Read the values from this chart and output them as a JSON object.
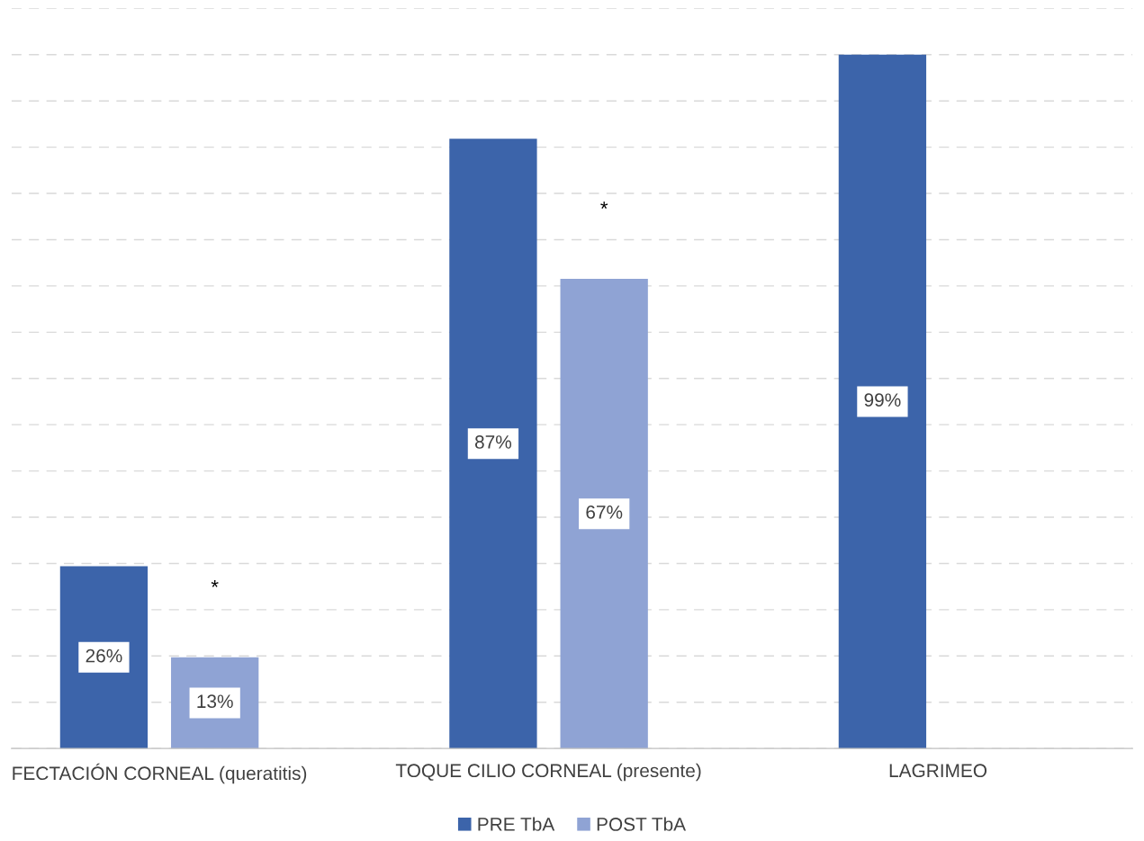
{
  "chart_data": {
    "type": "bar",
    "categories": [
      "FECTACIÓN CORNEAL (queratitis)",
      "TOQUE CILIO CORNEAL (presente)",
      "LAGRIMEO"
    ],
    "series": [
      {
        "name": "PRE TbA",
        "color": "#3c64aa",
        "values": [
          26,
          87,
          99
        ],
        "value_labels": [
          "26%",
          "87%",
          "99%"
        ]
      },
      {
        "name": "POST TbA",
        "color": "#8fa3d4",
        "values": [
          13,
          67,
          null
        ],
        "value_labels": [
          "13%",
          "67%",
          null
        ]
      }
    ],
    "tick_labels": "x",
    "grid": "y",
    "legend": "bottom",
    "annotations": [
      "*",
      "*"
    ]
  }
}
